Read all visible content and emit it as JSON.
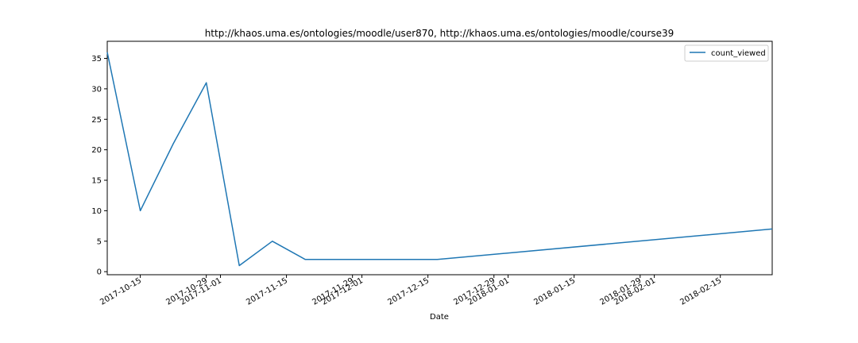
{
  "chart_data": {
    "type": "line",
    "title": "http://khaos.uma.es/ontologies/moodle/user870, http://khaos.uma.es/ontologies/moodle/course39",
    "xlabel": "Date",
    "ylabel": "",
    "ylim": [
      -0.5,
      37.8
    ],
    "xlim": [
      "2017-10-08",
      "2018-02-26"
    ],
    "x_ticks": [
      "2017-10-15",
      "2017-10-29",
      "2017-11-01",
      "2017-11-15",
      "2017-11-29",
      "2017-12-01",
      "2017-12-15",
      "2017-12-29",
      "2018-01-01",
      "2018-01-15",
      "2018-01-29",
      "2018-02-01",
      "2018-02-15"
    ],
    "y_ticks": [
      0,
      5,
      10,
      15,
      20,
      25,
      30,
      35
    ],
    "legend_position": "top-right",
    "grid": false,
    "series": [
      {
        "name": "count_viewed",
        "color": "#1f77b4",
        "x": [
          "2017-10-08",
          "2017-10-15",
          "2017-10-22",
          "2017-10-29",
          "2017-11-05",
          "2017-11-12",
          "2017-11-19",
          "2017-11-26",
          "2017-12-03",
          "2017-12-10",
          "2017-12-17",
          "2018-02-26"
        ],
        "y": [
          36,
          10,
          21,
          31,
          1,
          5,
          2,
          2,
          2,
          2,
          2,
          7
        ]
      }
    ]
  }
}
